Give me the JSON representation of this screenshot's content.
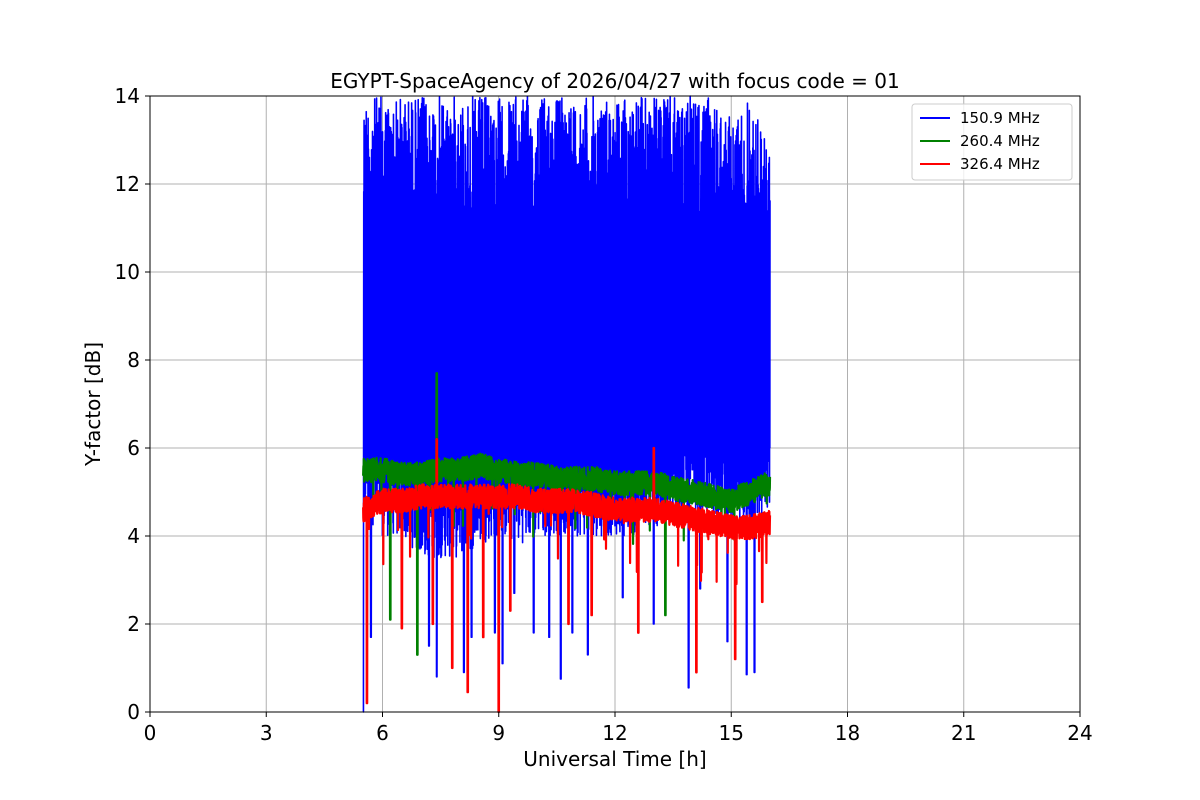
{
  "chart_data": {
    "type": "line",
    "title": "EGYPT-SpaceAgency of 2026/04/27 with focus code = 01",
    "xlabel": "Universal Time [h]",
    "ylabel": "Y-factor [dB]",
    "xlim": [
      0,
      24
    ],
    "ylim": [
      0,
      14
    ],
    "x_ticks": [
      0,
      3,
      6,
      9,
      12,
      15,
      18,
      21,
      24
    ],
    "y_ticks": [
      0,
      2,
      4,
      6,
      8,
      10,
      12,
      14
    ],
    "x_tick_labels": [
      "0",
      "3",
      "6",
      "9",
      "12",
      "15",
      "18",
      "21",
      "24"
    ],
    "y_tick_labels": [
      "0",
      "2",
      "4",
      "6",
      "8",
      "10",
      "12",
      "14"
    ],
    "grid": true,
    "legend_position": "top-right",
    "series": [
      {
        "name": "150.9 MHz",
        "label": " 150.9 MHz",
        "color": "#0000ff",
        "x_start": 5.5,
        "x_end": 16.0,
        "min": 0.0,
        "max": 14.0,
        "envelope": {
          "x": [
            5.5,
            6.0,
            6.5,
            7.0,
            7.5,
            8.0,
            8.5,
            9.0,
            9.5,
            10.0,
            10.5,
            11.0,
            11.5,
            12.0,
            12.5,
            13.0,
            13.5,
            14.0,
            14.5,
            15.0,
            15.5,
            16.0
          ],
          "upper": [
            14.0,
            14.0,
            14.0,
            14.0,
            14.0,
            14.0,
            14.0,
            14.0,
            14.0,
            14.0,
            14.0,
            14.0,
            14.0,
            14.0,
            14.0,
            14.0,
            14.0,
            14.0,
            14.0,
            13.5,
            14.0,
            12.8
          ],
          "lower": [
            4.5,
            4.0,
            4.0,
            3.5,
            3.5,
            3.5,
            3.8,
            4.0,
            3.8,
            4.0,
            4.0,
            4.0,
            4.0,
            4.0,
            4.0,
            4.2,
            4.2,
            4.3,
            4.5,
            4.2,
            4.0,
            4.5
          ]
        },
        "dips": [
          {
            "x": 5.5,
            "y": 0.0
          },
          {
            "x": 5.7,
            "y": 1.7
          },
          {
            "x": 6.2,
            "y": 2.4
          },
          {
            "x": 7.2,
            "y": 1.5
          },
          {
            "x": 7.4,
            "y": 0.8
          },
          {
            "x": 8.1,
            "y": 0.9
          },
          {
            "x": 8.3,
            "y": 1.7
          },
          {
            "x": 8.9,
            "y": 1.8
          },
          {
            "x": 9.1,
            "y": 1.1
          },
          {
            "x": 9.4,
            "y": 2.7
          },
          {
            "x": 9.9,
            "y": 1.8
          },
          {
            "x": 10.3,
            "y": 1.7
          },
          {
            "x": 10.6,
            "y": 0.75
          },
          {
            "x": 10.9,
            "y": 1.8
          },
          {
            "x": 11.3,
            "y": 1.3
          },
          {
            "x": 12.2,
            "y": 2.6
          },
          {
            "x": 13.0,
            "y": 2.0
          },
          {
            "x": 13.9,
            "y": 0.55
          },
          {
            "x": 14.2,
            "y": 2.8
          },
          {
            "x": 14.9,
            "y": 1.6
          },
          {
            "x": 15.4,
            "y": 0.85
          },
          {
            "x": 15.6,
            "y": 0.9
          }
        ]
      },
      {
        "name": "260.4 MHz",
        "label": " 260.4 MHz",
        "color": "#008000",
        "x_start": 5.5,
        "x_end": 16.0,
        "trend": {
          "x": [
            5.5,
            6.0,
            6.5,
            7.0,
            7.5,
            8.0,
            8.5,
            9.0,
            9.5,
            10.0,
            10.5,
            11.0,
            11.5,
            12.0,
            12.5,
            13.0,
            13.5,
            14.0,
            14.5,
            15.0,
            15.5,
            16.0
          ],
          "y": [
            5.5,
            5.5,
            5.4,
            5.4,
            5.5,
            5.5,
            5.6,
            5.5,
            5.4,
            5.4,
            5.3,
            5.3,
            5.3,
            5.2,
            5.2,
            5.2,
            5.1,
            5.0,
            4.9,
            4.8,
            5.0,
            5.2
          ]
        },
        "spikes": [
          {
            "x": 7.4,
            "y": 7.7
          }
        ],
        "dips": [
          {
            "x": 6.9,
            "y": 1.3
          },
          {
            "x": 13.3,
            "y": 2.2
          },
          {
            "x": 6.2,
            "y": 2.1
          }
        ]
      },
      {
        "name": "326.4 MHz",
        "label": " 326.4 MHz",
        "color": "#ff0000",
        "x_start": 5.5,
        "x_end": 16.0,
        "trend": {
          "x": [
            5.5,
            6.0,
            6.5,
            7.0,
            7.5,
            8.0,
            8.5,
            9.0,
            9.5,
            10.0,
            10.5,
            11.0,
            11.5,
            12.0,
            12.5,
            13.0,
            13.5,
            14.0,
            14.5,
            15.0,
            15.5,
            16.0
          ],
          "y": [
            4.6,
            4.8,
            4.8,
            4.9,
            4.9,
            4.9,
            4.9,
            4.9,
            4.9,
            4.8,
            4.8,
            4.8,
            4.7,
            4.6,
            4.6,
            4.6,
            4.5,
            4.4,
            4.3,
            4.2,
            4.2,
            4.3
          ]
        },
        "spikes": [
          {
            "x": 7.4,
            "y": 6.2
          },
          {
            "x": 13.0,
            "y": 6.0
          }
        ],
        "dips": [
          {
            "x": 5.6,
            "y": 0.2
          },
          {
            "x": 6.5,
            "y": 1.9
          },
          {
            "x": 7.3,
            "y": 2.0
          },
          {
            "x": 7.8,
            "y": 1.0
          },
          {
            "x": 8.2,
            "y": 0.45
          },
          {
            "x": 8.6,
            "y": 1.7
          },
          {
            "x": 9.0,
            "y": 0.0
          },
          {
            "x": 9.3,
            "y": 2.3
          },
          {
            "x": 10.8,
            "y": 2.0
          },
          {
            "x": 11.4,
            "y": 2.2
          },
          {
            "x": 12.6,
            "y": 1.8
          },
          {
            "x": 14.1,
            "y": 0.9
          },
          {
            "x": 15.1,
            "y": 1.2
          },
          {
            "x": 15.8,
            "y": 2.5
          }
        ]
      }
    ]
  }
}
